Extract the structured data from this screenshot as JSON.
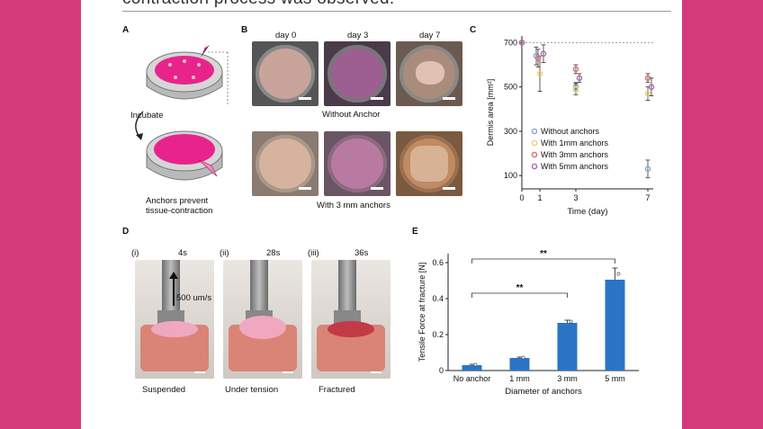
{
  "document": {
    "header_text": "contraction process was observed."
  },
  "panel_a": {
    "label": "A",
    "incubate_label": "Incubate",
    "caption_line1": "Anchors prevent",
    "caption_line2": "tissue-contraction",
    "colors": {
      "tissue": "#e8248c",
      "frame": "#c9c9c9"
    }
  },
  "panel_b": {
    "label": "B",
    "day_labels": [
      "day 0",
      "day 3",
      "day 7"
    ],
    "row1_caption": "Without Anchor",
    "row2_caption": "With 3 mm anchors"
  },
  "panel_c": {
    "label": "C",
    "chart_data": {
      "type": "scatter",
      "xlabel": "Time (day)",
      "ylabel": "Dermis area [mm²]",
      "x_ticks": [
        "0",
        "1",
        "3",
        "7"
      ],
      "y_ticks": [
        "100",
        "300",
        "500",
        "700"
      ],
      "xlim": [
        0,
        7.3
      ],
      "ylim": [
        40,
        730
      ],
      "reference_line_y": 700,
      "series": [
        {
          "name": "Without anchors",
          "color": "#8aa6d6",
          "points": [
            {
              "x": 0,
              "y": 700,
              "err": 0
            },
            {
              "x": 0.8,
              "y": 640,
              "err": 40
            },
            {
              "x": 3,
              "y": 500,
              "err": 20
            },
            {
              "x": 7,
              "y": 130,
              "err": 40
            }
          ]
        },
        {
          "name": "With 1mm anchors",
          "color": "#f1d36b",
          "points": [
            {
              "x": 0,
              "y": 700,
              "err": 0
            },
            {
              "x": 1,
              "y": 560,
              "err": 80
            },
            {
              "x": 3,
              "y": 490,
              "err": 25
            },
            {
              "x": 7,
              "y": 470,
              "err": 30
            }
          ]
        },
        {
          "name": "With 3mm anchors",
          "color": "#e07070",
          "points": [
            {
              "x": 0,
              "y": 700,
              "err": 0
            },
            {
              "x": 0.9,
              "y": 630,
              "err": 40
            },
            {
              "x": 3,
              "y": 580,
              "err": 20
            },
            {
              "x": 7,
              "y": 540,
              "err": 20
            }
          ]
        },
        {
          "name": "With 5mm anchors",
          "color": "#b06ab0",
          "points": [
            {
              "x": 0,
              "y": 700,
              "err": 0
            },
            {
              "x": 1.2,
              "y": 650,
              "err": 40
            },
            {
              "x": 3.2,
              "y": 540,
              "err": 20
            },
            {
              "x": 7.2,
              "y": 500,
              "err": 40
            }
          ]
        }
      ]
    }
  },
  "panel_d": {
    "label": "D",
    "frames": [
      {
        "roman": "(i)",
        "time": "4s",
        "caption": "Suspended"
      },
      {
        "roman": "(ii)",
        "time": "28s",
        "caption": "Under tension"
      },
      {
        "roman": "(iii)",
        "time": "36s",
        "caption": "Fractured"
      }
    ],
    "speed_label": "500 um/s"
  },
  "panel_e": {
    "label": "E",
    "chart_data": {
      "type": "bar",
      "categories": [
        "No anchor",
        "1 mm",
        "3 mm",
        "5 mm"
      ],
      "values": [
        0.03,
        0.07,
        0.265,
        0.505
      ],
      "errors": [
        0.005,
        0.005,
        0.015,
        0.065
      ],
      "xlabel": "Diameter of anchors",
      "ylabel": "Tensile Force at fracture [N]",
      "ylim": [
        0,
        0.65
      ],
      "y_ticks": [
        "0",
        "0.2",
        "0.4",
        "0.6"
      ],
      "bar_color": "#2a74c6",
      "significance": [
        {
          "from": 0,
          "to": 2,
          "label": "**"
        },
        {
          "from": 0,
          "to": 3,
          "label": "**"
        }
      ]
    }
  }
}
